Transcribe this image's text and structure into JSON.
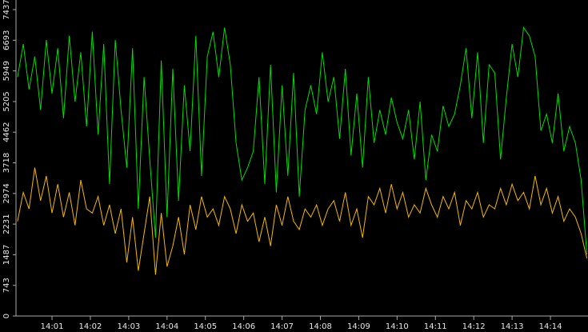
{
  "chart_data": {
    "type": "line",
    "x": [
      0.1,
      0.25,
      0.4,
      0.55,
      0.7,
      0.85,
      1.0,
      1.15,
      1.3,
      1.45,
      1.6,
      1.75,
      1.9,
      2.05,
      2.2,
      2.35,
      2.5,
      2.65,
      2.8,
      2.95,
      3.1,
      3.25,
      3.4,
      3.55,
      3.7,
      3.85,
      4.0,
      4.15,
      4.3,
      4.45,
      4.6,
      4.75,
      4.9,
      5.05,
      5.2,
      5.35,
      5.5,
      5.65,
      5.8,
      5.95,
      6.1,
      6.25,
      6.4,
      6.55,
      6.7,
      6.85,
      7.0,
      7.15,
      7.3,
      7.45,
      7.6,
      7.75,
      7.9,
      8.05,
      8.2,
      8.35,
      8.5,
      8.65,
      8.8,
      8.95,
      9.1,
      9.25,
      9.4,
      9.55,
      9.7,
      9.85,
      10.0,
      10.15,
      10.3,
      10.45,
      10.6,
      10.75,
      10.9,
      11.05,
      11.2,
      11.35,
      11.5,
      11.65,
      11.8,
      11.95,
      12.1,
      12.25,
      12.4,
      12.55,
      12.7,
      12.85,
      13.0,
      13.15,
      13.3,
      13.45,
      13.6,
      13.75,
      13.9,
      14.05,
      14.2,
      14.35,
      14.5,
      14.65,
      14.8,
      14.95
    ],
    "series": [
      {
        "color": "#00dd00",
        "values": [
          5800,
          6600,
          5500,
          6300,
          5000,
          6700,
          5400,
          6500,
          4800,
          6800,
          5200,
          6400,
          4600,
          6900,
          4400,
          6600,
          3200,
          6700,
          5000,
          3600,
          6500,
          2600,
          5800,
          3800,
          1900,
          6200,
          2400,
          6000,
          2800,
          5600,
          4000,
          6800,
          3400,
          6300,
          6900,
          5800,
          7000,
          6100,
          4200,
          3300,
          3600,
          4000,
          5800,
          3200,
          6100,
          3000,
          5600,
          3400,
          5900,
          2900,
          5000,
          5600,
          4900,
          6400,
          5200,
          5800,
          4300,
          6000,
          3900,
          5400,
          3600,
          5800,
          4200,
          5000,
          4400,
          5300,
          4700,
          4300,
          5000,
          3800,
          5200,
          3300,
          4400,
          4000,
          5100,
          4600,
          4900,
          5600,
          6500,
          4800,
          6400,
          4200,
          6100,
          5900,
          3800,
          5300,
          6600,
          5800,
          7000,
          6800,
          6300,
          4500,
          4900,
          4200,
          5400,
          4000,
          4600,
          4200,
          3300,
          1500
        ]
      },
      {
        "color": "#f5b800",
        "values": [
          2300,
          3000,
          2600,
          3600,
          2800,
          3400,
          2500,
          3200,
          2400,
          3000,
          2200,
          3300,
          2600,
          2500,
          2900,
          2200,
          2700,
          2000,
          2600,
          1300,
          2400,
          1100,
          2000,
          2900,
          1000,
          2500,
          1200,
          1700,
          2400,
          1500,
          2700,
          2100,
          2900,
          2400,
          2600,
          2200,
          2900,
          2600,
          2000,
          2700,
          2300,
          2500,
          1800,
          2400,
          1700,
          2700,
          2200,
          2900,
          2300,
          2100,
          2600,
          2400,
          2700,
          2200,
          2600,
          2800,
          2300,
          3000,
          2200,
          2600,
          1900,
          2900,
          2700,
          3100,
          2500,
          3200,
          2600,
          3000,
          2400,
          2700,
          2500,
          3100,
          2700,
          2400,
          2900,
          2600,
          3000,
          2200,
          2800,
          2600,
          3000,
          2400,
          2700,
          2600,
          3100,
          2700,
          3200,
          2800,
          3000,
          2600,
          3400,
          2700,
          3100,
          2500,
          2900,
          2300,
          2600,
          2400,
          2000,
          1400
        ]
      }
    ],
    "xlim": [
      0.06,
      14.98
    ],
    "xticks": [
      {
        "value": 1,
        "label": "14:01"
      },
      {
        "value": 2,
        "label": "14:02"
      },
      {
        "value": 3,
        "label": "14:03"
      },
      {
        "value": 4,
        "label": "14:04"
      },
      {
        "value": 5,
        "label": "14:05"
      },
      {
        "value": 6,
        "label": "14:06"
      },
      {
        "value": 7,
        "label": "14:07"
      },
      {
        "value": 8,
        "label": "14:08"
      },
      {
        "value": 9,
        "label": "14:09"
      },
      {
        "value": 10,
        "label": "14:10"
      },
      {
        "value": 11,
        "label": "14:11"
      },
      {
        "value": 12,
        "label": "14:12"
      },
      {
        "value": 13,
        "label": "14:13"
      },
      {
        "value": 14,
        "label": "14:14"
      }
    ],
    "ylim": [
      0,
      7437
    ],
    "yticks": [
      0,
      743,
      1487,
      2231,
      2974,
      3718,
      4462,
      5205,
      5949,
      6693,
      7437
    ]
  }
}
